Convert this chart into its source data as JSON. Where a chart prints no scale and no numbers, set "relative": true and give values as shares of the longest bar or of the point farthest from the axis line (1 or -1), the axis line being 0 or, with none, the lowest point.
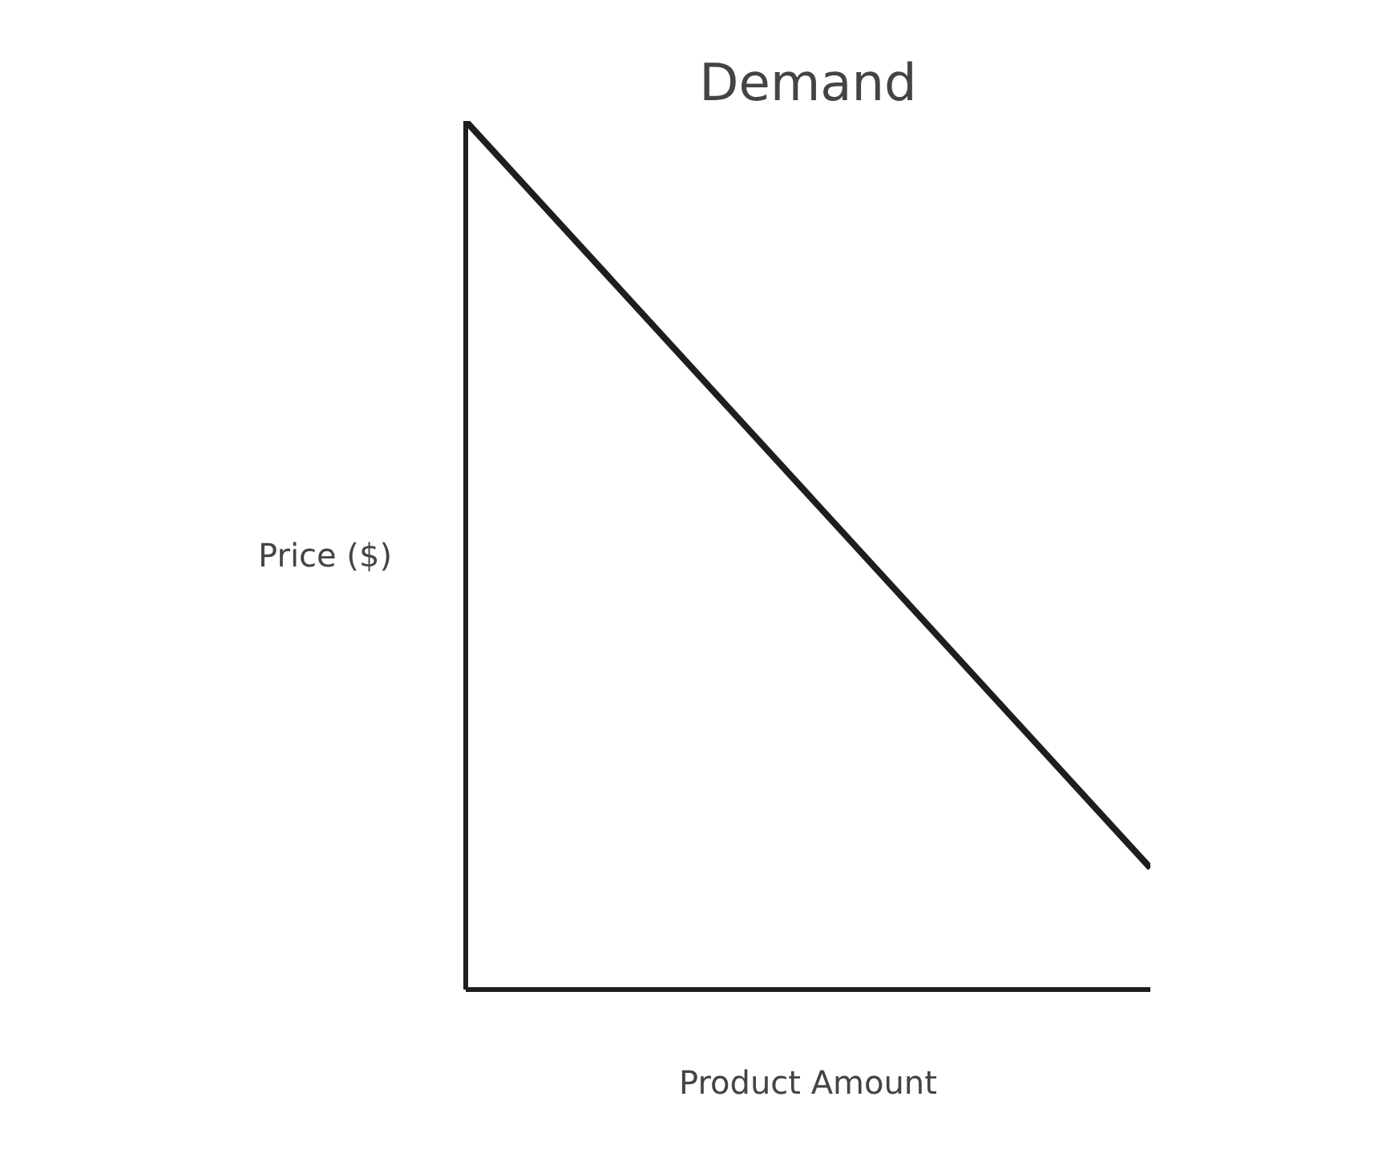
{
  "chart_data": {
    "type": "line",
    "title": "Demand",
    "xlabel": "Product Amount",
    "ylabel": "Price ($)",
    "relative": true,
    "categories": [
      null,
      null
    ],
    "series": [
      {
        "color": "#1e1e1e",
        "values": [
          1,
          0.14
        ]
      }
    ]
  }
}
